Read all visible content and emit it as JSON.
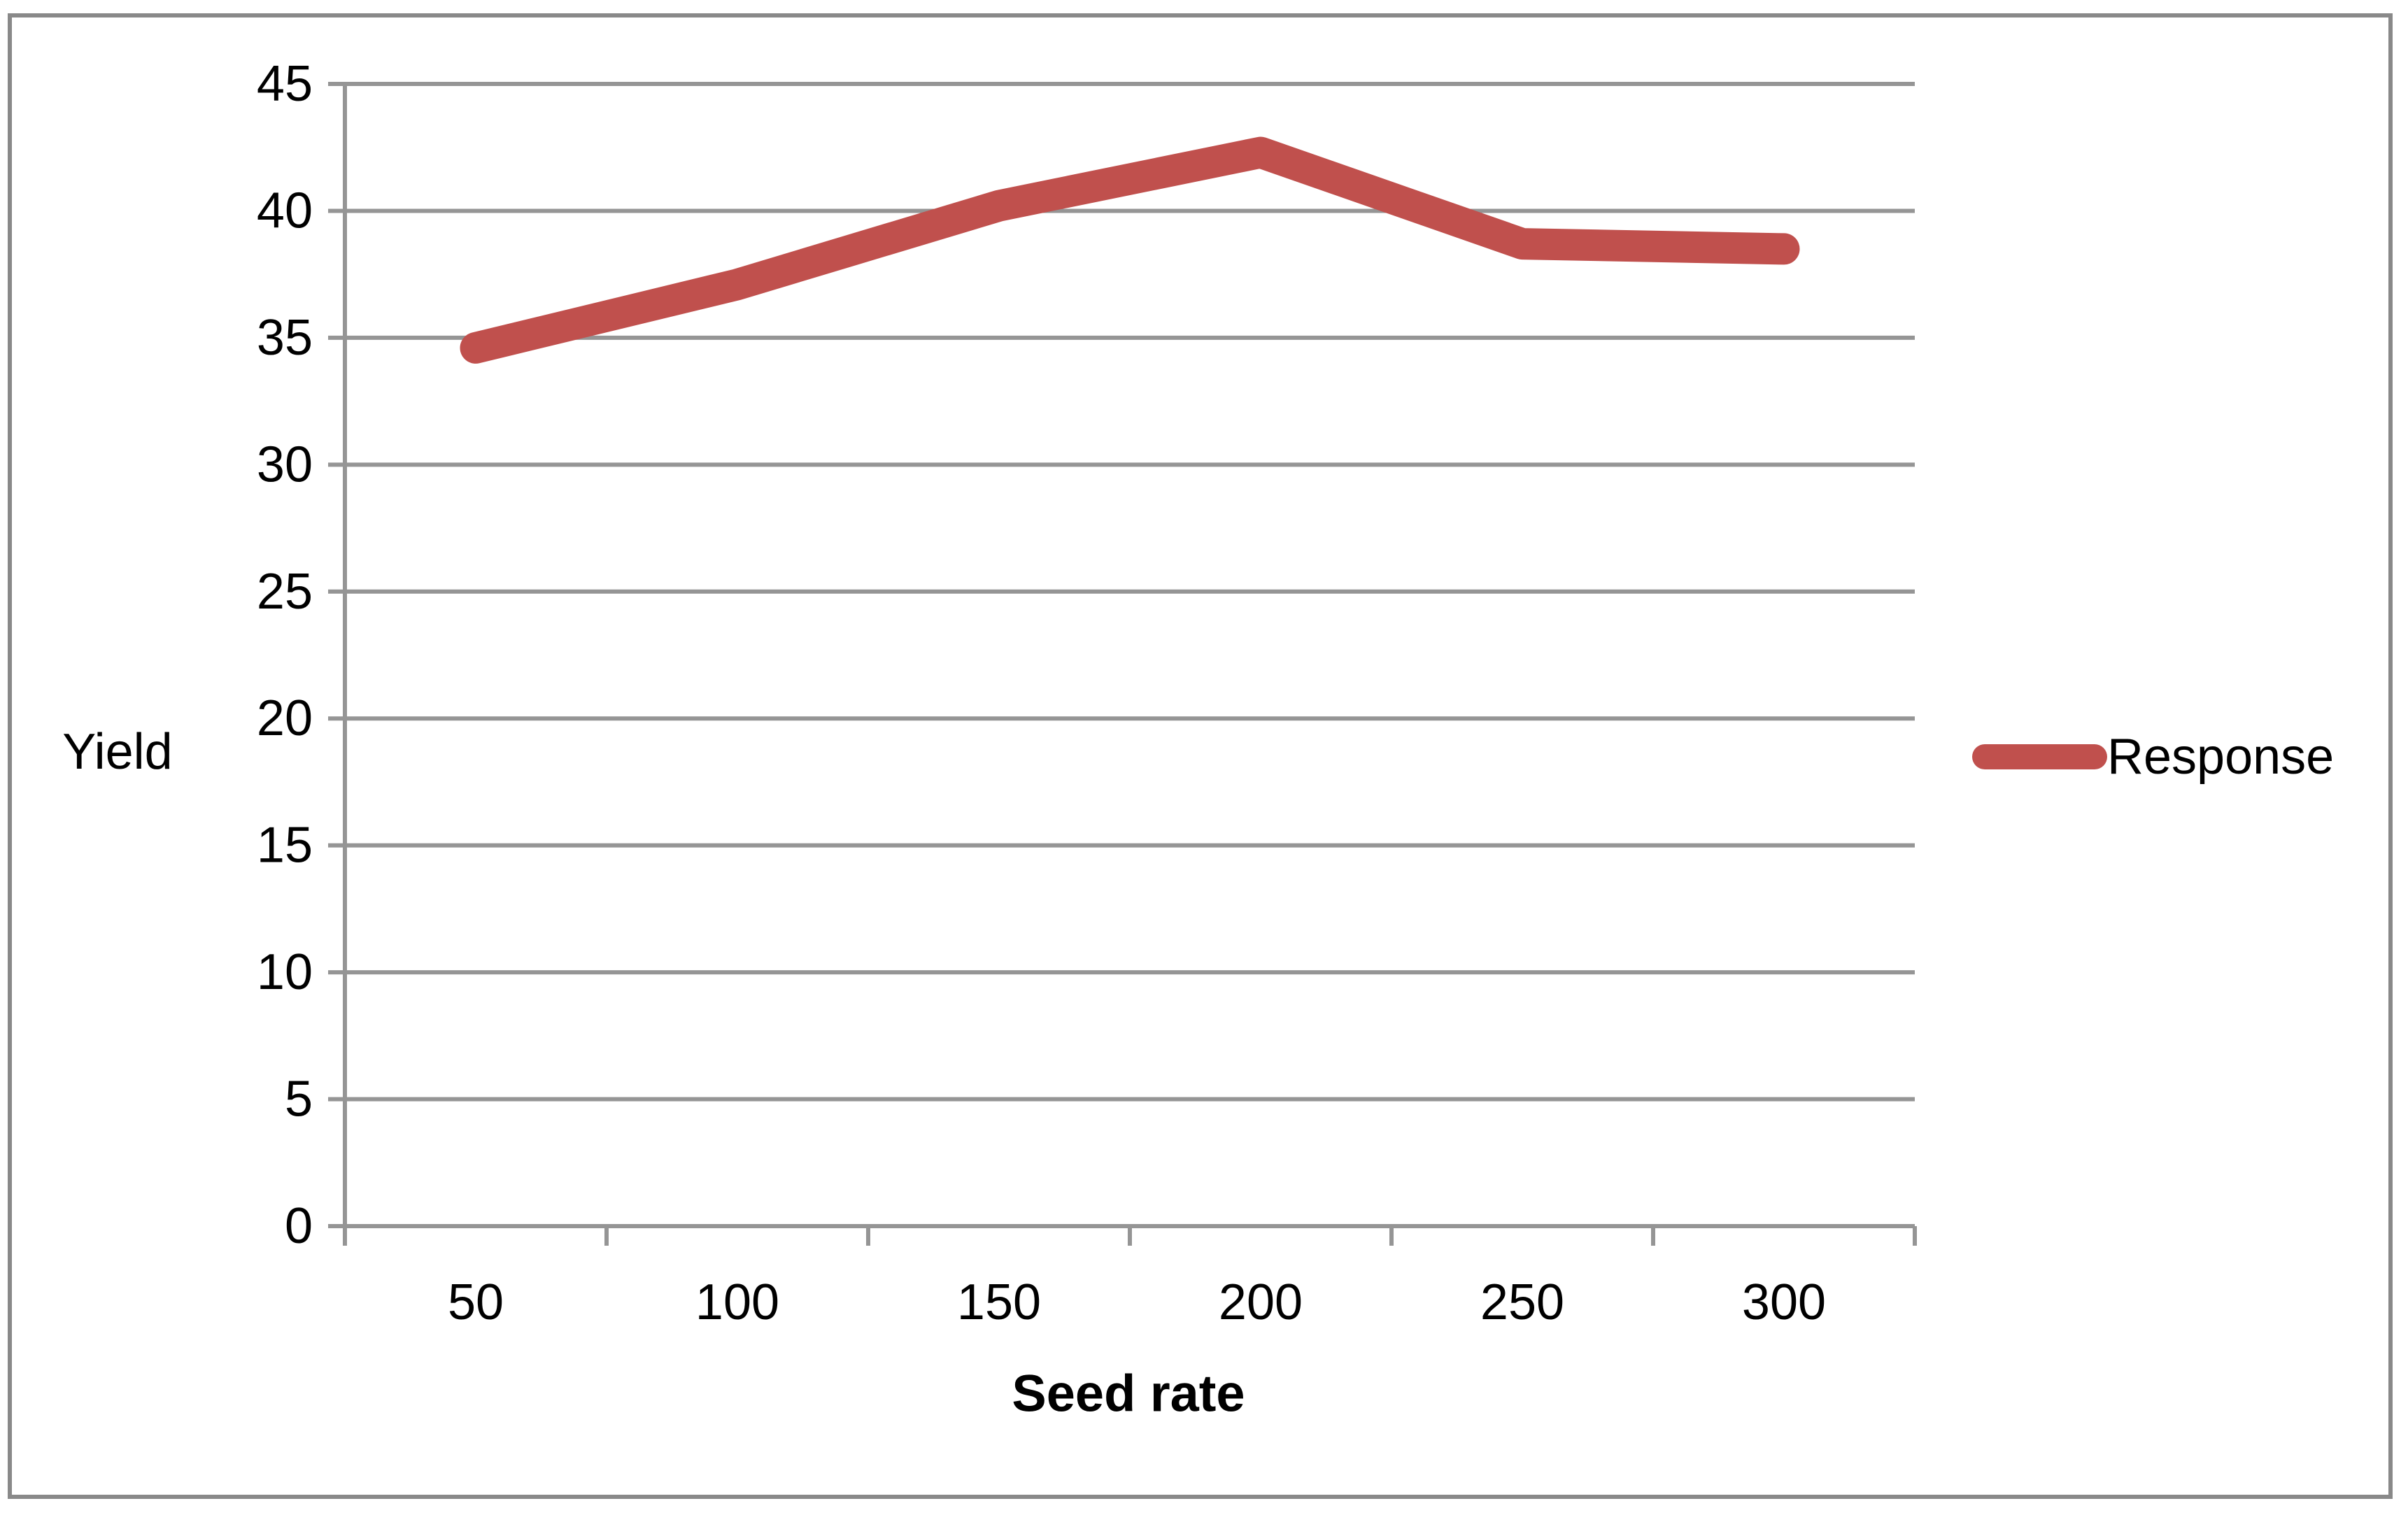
{
  "chart_data": {
    "type": "line",
    "title": "",
    "xlabel": "Seed rate",
    "ylabel": "Yield",
    "categories": [
      50,
      100,
      150,
      200,
      250,
      300
    ],
    "series": [
      {
        "name": "Response",
        "color": "#C0504D",
        "values": [
          34.6,
          37.1,
          40.2,
          42.3,
          38.7,
          38.5
        ]
      }
    ],
    "ylim": [
      0,
      45
    ],
    "yticks": [
      0,
      5,
      10,
      15,
      20,
      25,
      30,
      35,
      40,
      45
    ],
    "grid": true,
    "legend_position": "right-middle"
  },
  "colors": {
    "series": "#C0504D",
    "gridline": "#959595",
    "axis": "#959595",
    "border": "#898989",
    "text": "#000000",
    "background": "#FFFFFF"
  }
}
